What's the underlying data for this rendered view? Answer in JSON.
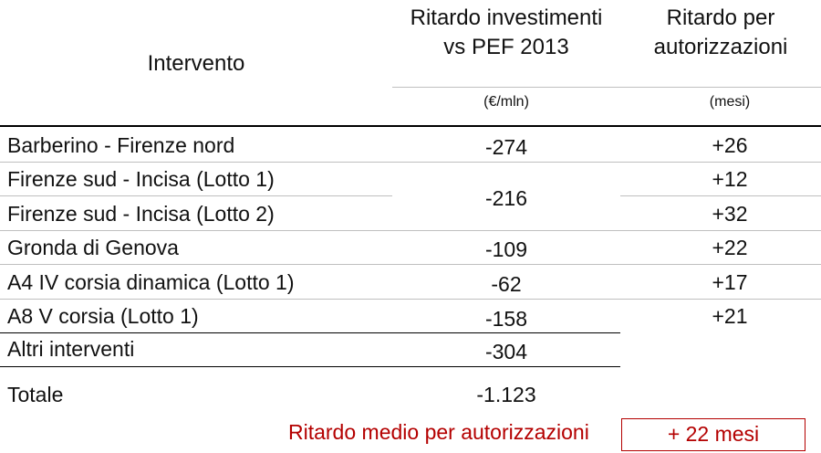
{
  "header": {
    "col_intervento": "Intervento",
    "col_invest": "Ritardo investimenti\nvs PEF 2013",
    "col_auth": "Ritardo per\nautorizzazioni",
    "unit_invest": "(€/mln)",
    "unit_auth": "(mesi)"
  },
  "rows": [
    {
      "name": "Barberino - Firenze nord",
      "invest": "-274",
      "auth": "+26"
    },
    {
      "name": "Firenze sud - Incisa (Lotto 1)",
      "invest": "-216",
      "auth": "+12"
    },
    {
      "name": "Firenze sud - Incisa (Lotto 2)",
      "invest": "",
      "auth": "+32"
    },
    {
      "name": "Gronda di Genova",
      "invest": "-109",
      "auth": "+22"
    },
    {
      "name": "A4 IV corsia dinamica (Lotto 1)",
      "invest": "-62",
      "auth": "+17"
    },
    {
      "name": "A8 V corsia (Lotto 1)",
      "invest": "-158",
      "auth": "+21"
    }
  ],
  "altri": {
    "name": "Altri interventi",
    "invest": "-304"
  },
  "totale": {
    "name": "Totale",
    "invest": "-1.123"
  },
  "summary": {
    "label": "Ritardo medio per autorizzazioni",
    "value": "+ 22 mesi"
  },
  "colors": {
    "accent": "#b40000"
  }
}
